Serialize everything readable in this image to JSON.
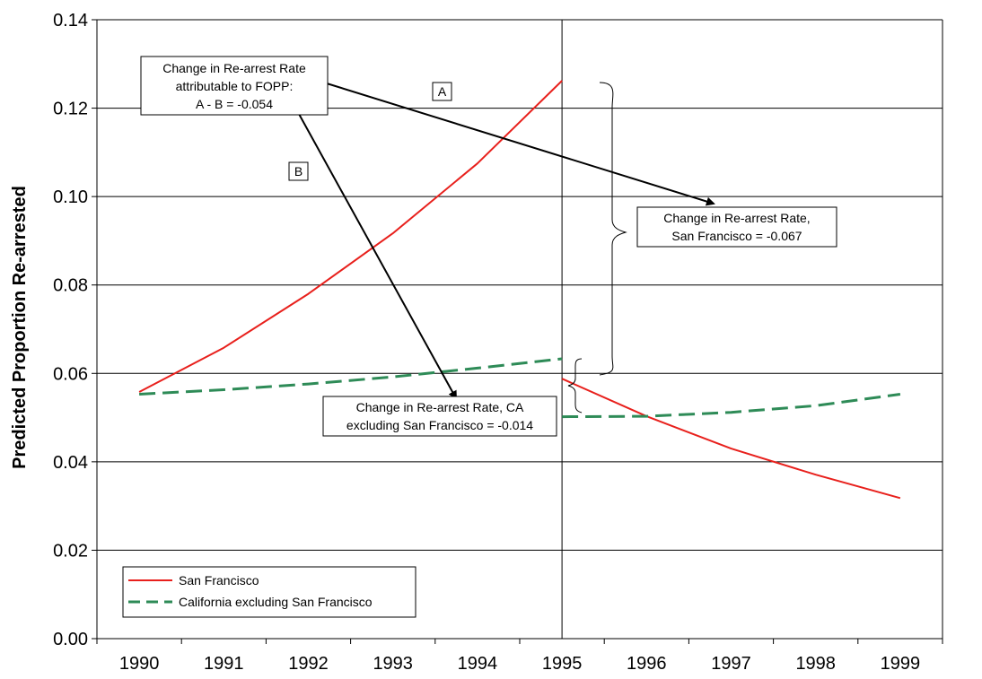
{
  "chart_data": {
    "type": "line",
    "title": "",
    "xlabel": "",
    "ylabel": "Predicted Proportion Re-arrested",
    "x_categories": [
      "1990",
      "1991",
      "1992",
      "1993",
      "1994",
      "1995",
      "1996",
      "1997",
      "1998",
      "1999"
    ],
    "ylim": [
      0,
      0.14
    ],
    "yticks": [
      "0.00",
      "0.02",
      "0.04",
      "0.06",
      "0.08",
      "0.10",
      "0.12",
      "0.14"
    ],
    "ytick_values": [
      0,
      0.02,
      0.04,
      0.06,
      0.08,
      0.1,
      0.12,
      0.14
    ],
    "grid": "horizontal",
    "intervention_x": 1995,
    "series": [
      {
        "name": "San Francisco",
        "color": "#e8201c",
        "style": "solid",
        "segments": [
          {
            "x": [
              1990,
              1991,
              1992,
              1993,
              1994,
              1995
            ],
            "y": [
              0.0558,
              0.0658,
              0.078,
              0.0917,
              0.1075,
              0.1262
            ]
          },
          {
            "x": [
              1995,
              1996,
              1997,
              1998,
              1999
            ],
            "y": [
              0.0588,
              0.0503,
              0.043,
              0.0371,
              0.0318
            ]
          }
        ]
      },
      {
        "name": "California excluding San Francisco",
        "color": "#2e8b57",
        "style": "dashed",
        "segments": [
          {
            "x": [
              1990,
              1991,
              1992,
              1993,
              1994,
              1995
            ],
            "y": [
              0.0553,
              0.0563,
              0.0576,
              0.0592,
              0.0612,
              0.0633
            ]
          },
          {
            "x": [
              1995,
              1996,
              1997,
              1998,
              1999
            ],
            "y": [
              0.0502,
              0.0503,
              0.0512,
              0.0527,
              0.0553
            ]
          }
        ]
      }
    ],
    "annotations": {
      "fopp_box": [
        "Change in Re-arrest Rate",
        "attributable to FOPP:",
        "A - B = -0.054"
      ],
      "label_a": "A",
      "label_b": "B",
      "sf_change_box": [
        "Change in Re-arrest Rate,",
        "San Francisco = -0.067"
      ],
      "ca_change_box": [
        "Change in Re-arrest Rate, CA",
        "excluding San Francisco = -0.014"
      ]
    },
    "legend": {
      "placement": "bottom-left",
      "entries": [
        "San Francisco",
        "California excluding San Francisco"
      ]
    }
  }
}
